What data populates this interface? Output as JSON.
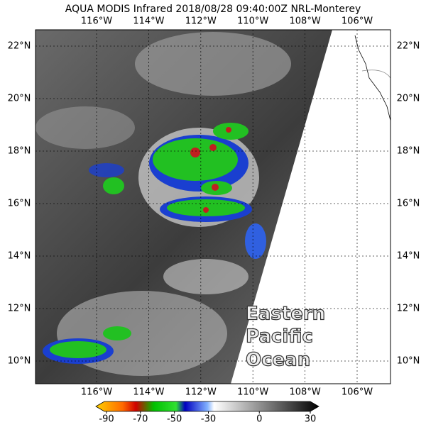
{
  "title": "AQUA MODIS Infrared 2018/08/28 09:40:00Z NRL-Monterey",
  "longitude_labels": [
    "116°W",
    "114°W",
    "112°W",
    "110°W",
    "108°W",
    "106°W"
  ],
  "latitude_labels": [
    "22°N",
    "20°N",
    "18°N",
    "16°N",
    "14°N",
    "12°N",
    "10°N"
  ],
  "annotation": [
    "Eastern",
    "Pacific",
    "Ocean"
  ],
  "colorbar": {
    "ticks": [
      -90,
      -70,
      -50,
      -30,
      0,
      30
    ]
  }
}
